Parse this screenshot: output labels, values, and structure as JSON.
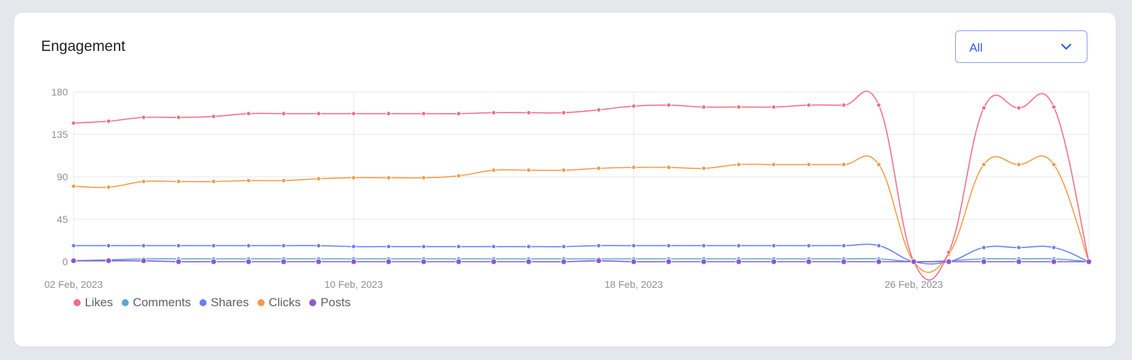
{
  "card": {
    "title": "Engagement",
    "filter": {
      "selected": "All",
      "icon": "chevron-down-icon"
    }
  },
  "colors": {
    "Likes": "#f26d84",
    "Comments": "#5aa7cf",
    "Shares": "#6a7ff2",
    "Clicks": "#f49b48",
    "Posts": "#8a5ad2",
    "grid": "#e6e7ea",
    "accent": "#3559e6"
  },
  "chart_data": {
    "type": "line",
    "title": "",
    "xlabel": "",
    "ylabel": "",
    "ylim": [
      0,
      180
    ],
    "yticks": [
      0,
      45,
      90,
      135,
      180
    ],
    "x": [
      "02 Feb, 2023",
      "03 Feb, 2023",
      "04 Feb, 2023",
      "05 Feb, 2023",
      "06 Feb, 2023",
      "07 Feb, 2023",
      "08 Feb, 2023",
      "09 Feb, 2023",
      "10 Feb, 2023",
      "11 Feb, 2023",
      "12 Feb, 2023",
      "13 Feb, 2023",
      "14 Feb, 2023",
      "15 Feb, 2023",
      "16 Feb, 2023",
      "17 Feb, 2023",
      "18 Feb, 2023",
      "19 Feb, 2023",
      "20 Feb, 2023",
      "21 Feb, 2023",
      "22 Feb, 2023",
      "23 Feb, 2023",
      "24 Feb, 2023",
      "25 Feb, 2023",
      "26 Feb, 2023",
      "27 Feb, 2023",
      "28 Feb, 2023",
      "01 Mar, 2023",
      "02 Mar, 2023",
      "03 Mar, 2023"
    ],
    "xticks": [
      "02 Feb, 2023",
      "10 Feb, 2023",
      "18 Feb, 2023",
      "26 Feb, 2023"
    ],
    "grid": true,
    "legend": "bottom-left",
    "series": [
      {
        "name": "Likes",
        "values": [
          147,
          149,
          153,
          153,
          154,
          157,
          157,
          157,
          157,
          157,
          157,
          157,
          158,
          158,
          158,
          161,
          165,
          166,
          164,
          164,
          164,
          166,
          166,
          166,
          0,
          10,
          163,
          163,
          164,
          0
        ]
      },
      {
        "name": "Comments",
        "values": [
          1,
          2,
          3,
          3,
          3,
          3,
          3,
          3,
          3,
          3,
          3,
          3,
          3,
          3,
          3,
          3,
          3,
          3,
          3,
          3,
          3,
          3,
          3,
          3,
          0,
          1,
          3,
          3,
          3,
          0
        ]
      },
      {
        "name": "Shares",
        "values": [
          17,
          17,
          17,
          17,
          17,
          17,
          17,
          17,
          16,
          16,
          16,
          16,
          16,
          16,
          16,
          17,
          17,
          17,
          17,
          17,
          17,
          17,
          17,
          17,
          0,
          0,
          15,
          15,
          15,
          0
        ]
      },
      {
        "name": "Clicks",
        "values": [
          80,
          79,
          85,
          85,
          85,
          86,
          86,
          88,
          89,
          89,
          89,
          91,
          97,
          97,
          97,
          99,
          100,
          100,
          99,
          103,
          103,
          103,
          103,
          103,
          0,
          8,
          103,
          103,
          103,
          0
        ]
      },
      {
        "name": "Posts",
        "values": [
          1,
          1,
          1,
          0,
          0,
          0,
          0,
          0,
          0,
          0,
          0,
          0,
          0,
          0,
          0,
          1,
          0,
          0,
          0,
          0,
          0,
          0,
          0,
          0,
          0,
          0,
          0,
          0,
          0,
          0
        ]
      }
    ]
  }
}
